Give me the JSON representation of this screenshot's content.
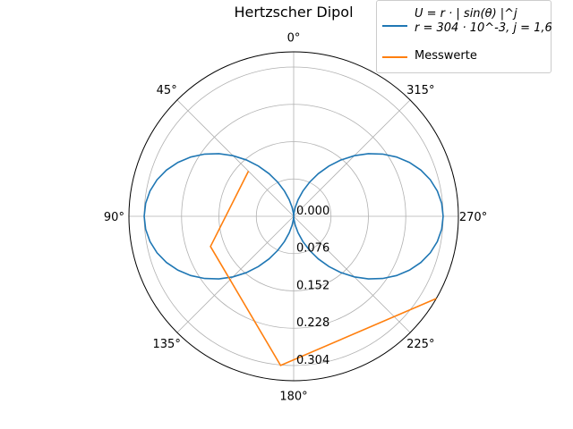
{
  "chart_data": {
    "type": "polar-line",
    "title": "Hertzscher Dipol",
    "theta_direction": "counterclockwise",
    "theta_zero": "top",
    "theta_ticks": [
      "0°",
      "45°",
      "90°",
      "135°",
      "180°",
      "225°",
      "270°",
      "315°"
    ],
    "theta_tick_values": [
      0,
      45,
      90,
      135,
      180,
      225,
      270,
      315
    ],
    "r_ticks": [
      "0.000",
      "0.076",
      "0.152",
      "0.228",
      "0.304"
    ],
    "r_tick_values": [
      0.0,
      0.076,
      0.152,
      0.228,
      0.304
    ],
    "rlim": [
      0,
      0.335
    ],
    "r_label_angle_deg": 180,
    "grid": true,
    "legend_position": "top-right",
    "series": [
      {
        "name": "U = r · | sin(θ) |^j",
        "name_line2": "r = 304 · 10^-3, j = 1,6",
        "color": "#1f77b4",
        "formula": {
          "r": 0.304,
          "j": 1.6,
          "points": 73
        }
      },
      {
        "name": "Messwerte",
        "color": "#ff7f0e",
        "theta_deg": [
          45,
          110,
          175,
          240
        ],
        "r": [
          0.13,
          0.18,
          0.305,
          0.335
        ]
      }
    ]
  }
}
